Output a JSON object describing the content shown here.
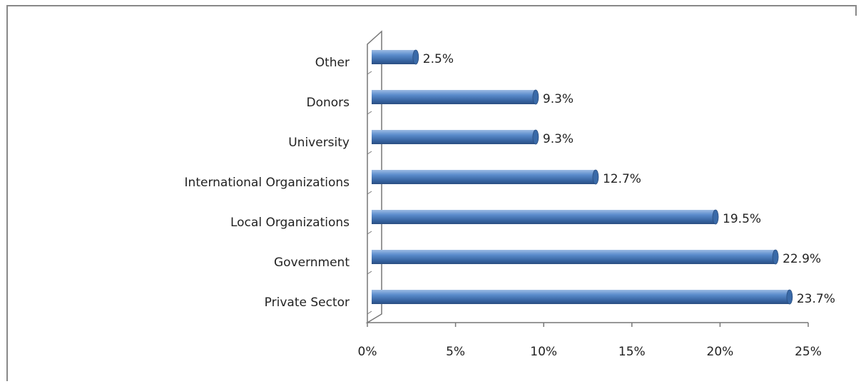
{
  "chart_data": {
    "type": "bar",
    "orientation": "horizontal",
    "categories": [
      "Other",
      "Donors",
      "University",
      "International Organizations",
      "Local Organizations",
      "Government",
      "Private Sector"
    ],
    "values": [
      2.5,
      9.3,
      9.3,
      12.7,
      19.5,
      22.9,
      23.7
    ],
    "value_labels": [
      "2.5%",
      "9.3%",
      "9.3%",
      "12.7%",
      "19.5%",
      "22.9%",
      "23.7%"
    ],
    "color": "#4f81bd",
    "xlim": [
      0,
      25
    ],
    "xticks": [
      {
        "value": 0,
        "label": "0%"
      },
      {
        "value": 5,
        "label": "5%"
      },
      {
        "value": 10,
        "label": "10%"
      },
      {
        "value": 15,
        "label": "15%"
      },
      {
        "value": 20,
        "label": "20%"
      },
      {
        "value": 25,
        "label": "25%"
      }
    ],
    "grid": false
  }
}
